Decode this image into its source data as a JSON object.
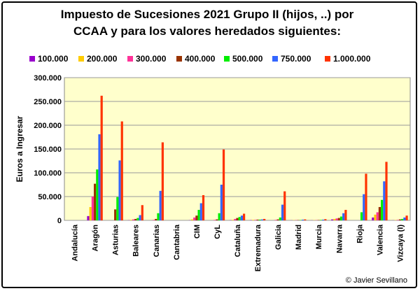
{
  "chart_data": {
    "type": "bar",
    "title_lines": [
      "Impuesto de Sucesiones 2021 Grupo II (hijos, ..) por",
      "CCAA y para los valores heredados siguientes:"
    ],
    "ylabel": "Euros a Ingresar",
    "xlabel": "",
    "ylim": [
      0,
      300000
    ],
    "yticks": [
      "0",
      "50.000",
      "100.000",
      "150.000",
      "200.000",
      "250.000",
      "300.000"
    ],
    "ytick_values": [
      0,
      50000,
      100000,
      150000,
      200000,
      250000,
      300000
    ],
    "grid": true,
    "legend_position": "top",
    "credit": "© Javier Sevillano",
    "categories": [
      "Andalucía",
      "Aragón",
      "Asturias",
      "Baleares",
      "Canarias",
      "Cantabria",
      "CIM",
      "CyL",
      "Cataluña",
      "Extremadura",
      "Galicia",
      "Madrid",
      "Murcia",
      "Navarra",
      "Rioja",
      "Valencia",
      "Vizcaya (I)"
    ],
    "series": [
      {
        "name": "100.000",
        "color": "#9900cc",
        "values": [
          0,
          9000,
          0,
          400,
          0,
          0,
          400,
          0,
          400,
          500,
          0,
          200,
          200,
          2000,
          0,
          6000,
          200
        ]
      },
      {
        "name": "200.000",
        "color": "#ffcc00",
        "values": [
          0,
          28000,
          0,
          1000,
          0,
          0,
          2000,
          0,
          1000,
          1000,
          0,
          400,
          400,
          3000,
          0,
          12000,
          500
        ]
      },
      {
        "name": "300.000",
        "color": "#ff3399",
        "values": [
          0,
          50000,
          0,
          2000,
          1000,
          0,
          6000,
          1000,
          3000,
          1000,
          1000,
          500,
          500,
          4000,
          0,
          17000,
          1000
        ]
      },
      {
        "name": "400.000",
        "color": "#993300",
        "values": [
          0,
          77000,
          23000,
          3000,
          3000,
          0,
          10000,
          2000,
          5000,
          1500,
          2000,
          600,
          700,
          5000,
          0,
          28000,
          2000
        ]
      },
      {
        "name": "500.000",
        "color": "#00ee00",
        "values": [
          0,
          107000,
          49000,
          5000,
          15000,
          0,
          22000,
          15000,
          7000,
          1500,
          6000,
          700,
          900,
          8000,
          17000,
          43000,
          3000
        ]
      },
      {
        "name": "750.000",
        "color": "#3366ff",
        "values": [
          0,
          181000,
          126000,
          11000,
          62000,
          0,
          36000,
          75000,
          10000,
          2000,
          33000,
          1500,
          1500,
          15000,
          55000,
          82000,
          6000
        ]
      },
      {
        "name": "1.000.000",
        "color": "#ff3300",
        "values": [
          0,
          262000,
          208000,
          32000,
          164000,
          0,
          53000,
          149000,
          14000,
          3000,
          61000,
          2000,
          2500,
          22000,
          98000,
          123000,
          10000
        ]
      }
    ]
  }
}
